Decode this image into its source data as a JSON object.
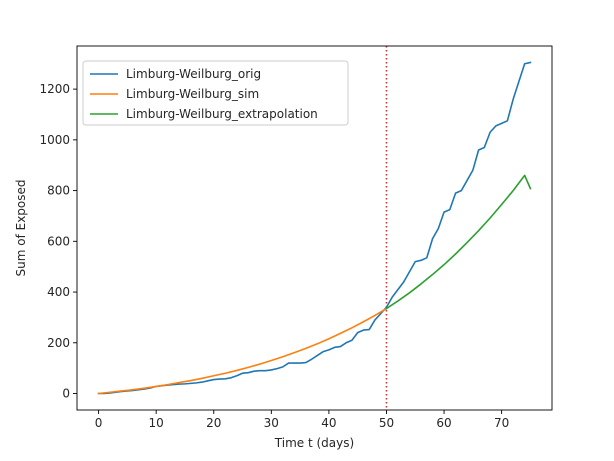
{
  "chart_data": {
    "type": "line",
    "xlabel": "Time t (days)",
    "ylabel": "Sum of Exposed",
    "xlim": [
      -3.75,
      78.75
    ],
    "ylim": [
      -65,
      1370
    ],
    "xticks": [
      0,
      10,
      20,
      30,
      40,
      50,
      60,
      70
    ],
    "yticks": [
      0,
      200,
      400,
      600,
      800,
      1000,
      1200
    ],
    "grid": false,
    "legend_position": "top-left",
    "vline": {
      "x": 50,
      "color": "#d62728",
      "style": "dotted"
    },
    "series": [
      {
        "name": "Limburg-Weilburg_orig",
        "color": "#1f77b4",
        "x": [
          0,
          1,
          2,
          3,
          4,
          5,
          6,
          7,
          8,
          9,
          10,
          11,
          12,
          13,
          14,
          15,
          16,
          17,
          18,
          19,
          20,
          21,
          22,
          23,
          24,
          25,
          26,
          27,
          28,
          29,
          30,
          31,
          32,
          33,
          34,
          35,
          36,
          37,
          38,
          39,
          40,
          41,
          42,
          43,
          44,
          45,
          46,
          47,
          48,
          49,
          50,
          51,
          52,
          53,
          54,
          55,
          56,
          57,
          58,
          59,
          60,
          61,
          62,
          63,
          64,
          65,
          66,
          67,
          68,
          69,
          70,
          71,
          72,
          73,
          74,
          75
        ],
        "y": [
          0,
          0,
          2,
          5,
          8,
          10,
          12,
          15,
          18,
          22,
          28,
          31,
          33,
          35,
          37,
          38,
          40,
          42,
          45,
          50,
          55,
          57,
          58,
          62,
          70,
          80,
          82,
          88,
          90,
          90,
          93,
          98,
          105,
          120,
          120,
          120,
          122,
          135,
          150,
          165,
          172,
          182,
          185,
          200,
          210,
          240,
          250,
          252,
          290,
          315,
          340,
          380,
          410,
          440,
          480,
          520,
          525,
          535,
          610,
          650,
          715,
          725,
          790,
          800,
          840,
          880,
          960,
          970,
          1030,
          1055,
          1065,
          1075,
          1160,
          1230,
          1300,
          1305
        ]
      },
      {
        "name": "Limburg-Weilburg_sim",
        "color": "#ff7f0e",
        "x": [
          0,
          2,
          4,
          6,
          8,
          10,
          12,
          14,
          16,
          18,
          20,
          22,
          24,
          26,
          28,
          30,
          32,
          34,
          36,
          38,
          40,
          42,
          44,
          46,
          48,
          50
        ],
        "y": [
          0,
          5,
          10,
          15,
          21,
          28,
          35,
          43,
          51,
          60,
          70,
          80,
          91,
          103,
          116,
          130,
          145,
          161,
          178,
          196,
          216,
          237,
          259,
          283,
          308,
          335
        ]
      },
      {
        "name": "Limburg-Weilburg_extrapolation",
        "color": "#2ca02c",
        "x": [
          50,
          52,
          54,
          56,
          58,
          60,
          62,
          64,
          66,
          68,
          70,
          72,
          74,
          75
        ],
        "y": [
          335,
          365,
          397,
          432,
          469,
          508,
          550,
          595,
          642,
          692,
          745,
          800,
          860,
          808
        ]
      }
    ]
  }
}
